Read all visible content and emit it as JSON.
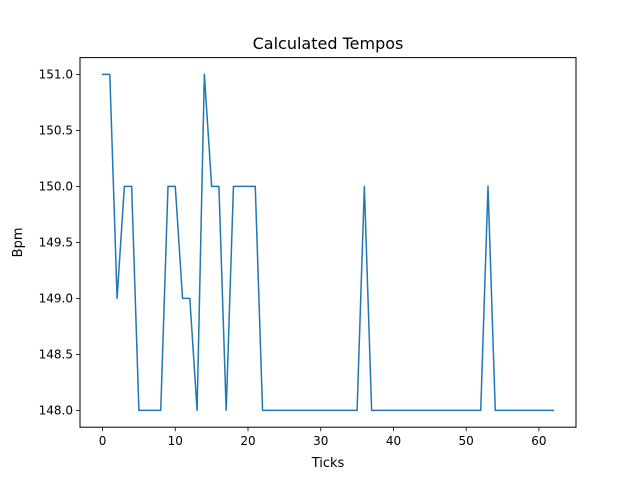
{
  "chart_data": {
    "type": "line",
    "title": "Calculated Tempos",
    "xlabel": "Ticks",
    "ylabel": "Bpm",
    "xlim": [
      -3.1,
      65.1
    ],
    "ylim": [
      147.85,
      151.15
    ],
    "xticks": [
      0,
      10,
      20,
      30,
      40,
      50,
      60
    ],
    "xtick_labels": [
      "0",
      "10",
      "20",
      "30",
      "40",
      "50",
      "60"
    ],
    "yticks": [
      148.0,
      148.5,
      149.0,
      149.5,
      150.0,
      150.5,
      151.0
    ],
    "ytick_labels": [
      "148.0",
      "148.5",
      "149.0",
      "149.5",
      "150.0",
      "150.5",
      "151.0"
    ],
    "grid": false,
    "series": [
      {
        "color": "#1f77b4",
        "x": [
          0,
          1,
          2,
          3,
          4,
          5,
          6,
          7,
          8,
          9,
          10,
          11,
          12,
          13,
          14,
          15,
          16,
          17,
          18,
          19,
          20,
          21,
          22,
          23,
          24,
          25,
          26,
          27,
          28,
          29,
          30,
          31,
          32,
          33,
          34,
          35,
          36,
          37,
          38,
          39,
          40,
          41,
          42,
          43,
          44,
          45,
          46,
          47,
          48,
          49,
          50,
          51,
          52,
          53,
          54,
          55,
          56,
          57,
          58,
          59,
          60,
          61,
          62
        ],
        "values": [
          151,
          151,
          149,
          150,
          150,
          148,
          148,
          148,
          148,
          150,
          150,
          149,
          149,
          148,
          151,
          150,
          150,
          148,
          150,
          150,
          150,
          150,
          148,
          148,
          148,
          148,
          148,
          148,
          148,
          148,
          148,
          148,
          148,
          148,
          148,
          148,
          150,
          148,
          148,
          148,
          148,
          148,
          148,
          148,
          148,
          148,
          148,
          148,
          148,
          148,
          148,
          148,
          148,
          150,
          148,
          148,
          148,
          148,
          148,
          148,
          148,
          148,
          148
        ]
      }
    ]
  }
}
